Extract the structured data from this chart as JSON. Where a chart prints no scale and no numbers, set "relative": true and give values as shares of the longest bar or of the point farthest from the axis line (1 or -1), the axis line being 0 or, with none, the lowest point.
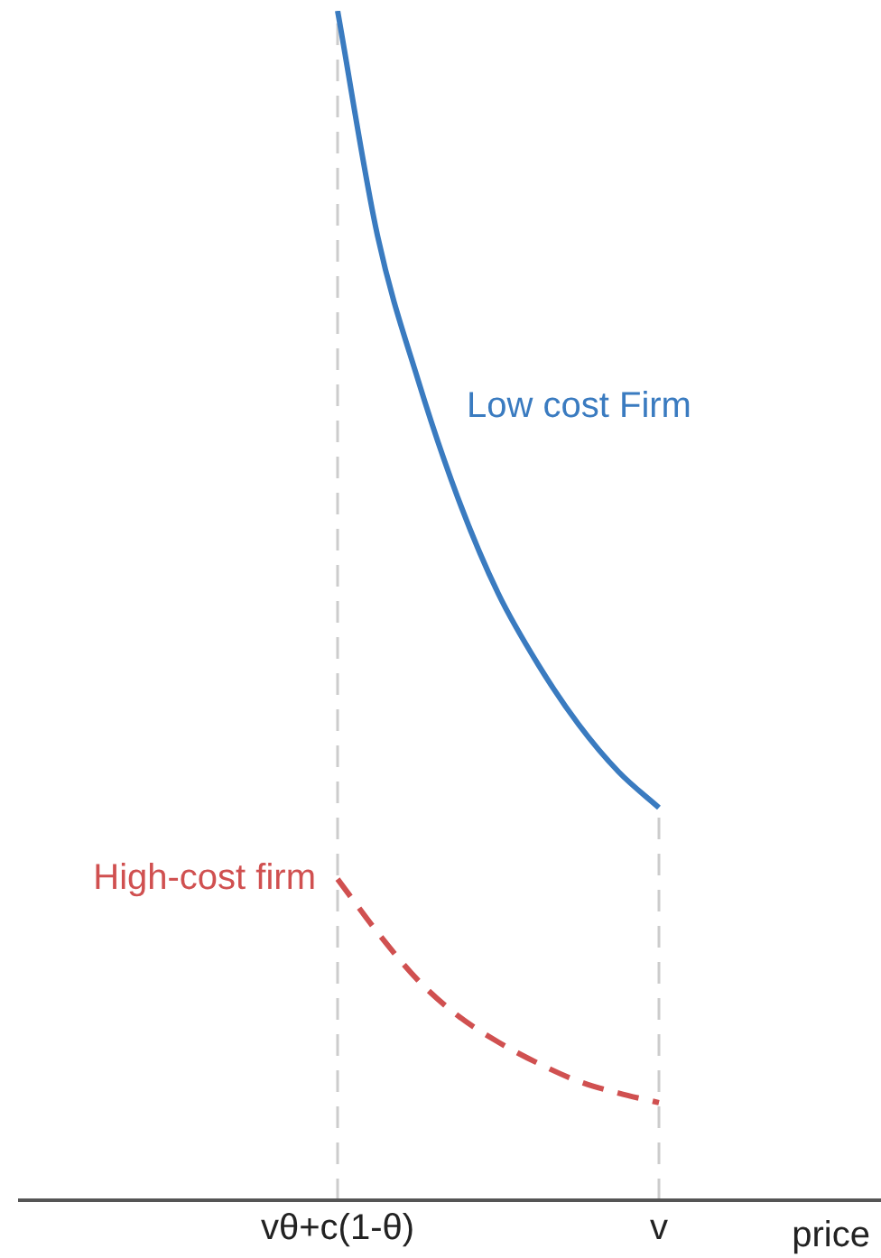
{
  "chart_data": {
    "type": "line",
    "relative": true,
    "xlabel": "price",
    "categories": [
      "vθ+c(1-θ)",
      null,
      null,
      null,
      null,
      null,
      null,
      null,
      "v"
    ],
    "ref_lines": [
      {
        "axis": "x",
        "value": "vθ+c(1-θ)",
        "color": "#cccccc",
        "line_style": "dashed"
      },
      {
        "axis": "x",
        "value": "v",
        "color": "#cccccc",
        "line_style": "dashed"
      }
    ],
    "series": [
      {
        "name": "Low cost Firm",
        "color": "#3a7bc0",
        "line_style": "solid",
        "values": [
          1,
          0.81,
          0.69,
          0.59,
          0.51,
          0.45,
          0.4,
          0.36,
          0.33
        ]
      },
      {
        "name": "High-cost firm",
        "color": "#d05050",
        "line_style": "dashed",
        "values": [
          0.27,
          0.225,
          0.185,
          0.155,
          0.133,
          0.115,
          0.1,
          0.09,
          0.082
        ]
      }
    ]
  }
}
